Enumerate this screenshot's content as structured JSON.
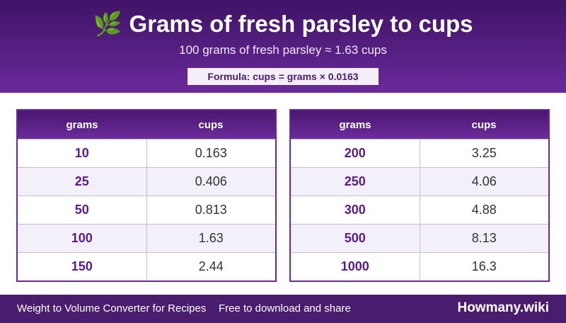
{
  "header": {
    "icon": "🌿",
    "title": "Grams of fresh parsley to cups",
    "subtitle": "100 grams of fresh parsley ≈ 1.63 cups",
    "formula": "Formula: cups = grams × 0.0163"
  },
  "tables": [
    {
      "columns": [
        "grams",
        "cups"
      ],
      "rows": [
        [
          "10",
          "0.163"
        ],
        [
          "25",
          "0.406"
        ],
        [
          "50",
          "0.813"
        ],
        [
          "100",
          "1.63"
        ],
        [
          "150",
          "2.44"
        ]
      ]
    },
    {
      "columns": [
        "grams",
        "cups"
      ],
      "rows": [
        [
          "200",
          "3.25"
        ],
        [
          "250",
          "4.06"
        ],
        [
          "300",
          "4.88"
        ],
        [
          "500",
          "8.13"
        ],
        [
          "1000",
          "16.3"
        ]
      ]
    }
  ],
  "footer": {
    "left": "Weight to Volume Converter for Recipes",
    "middle": "Free to download and share",
    "brand": "Howmany.wiki"
  }
}
